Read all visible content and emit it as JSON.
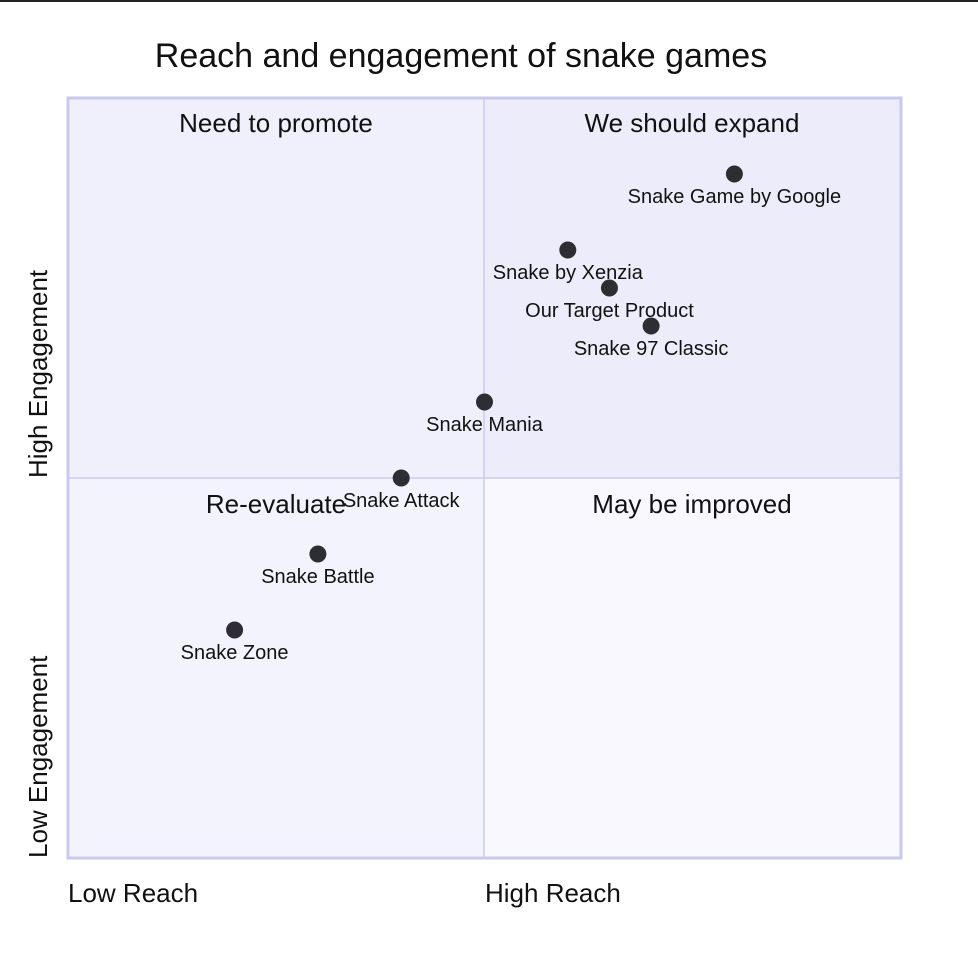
{
  "chart_data": {
    "type": "quadrant",
    "title": "Reach and engagement of snake games",
    "x_axis": {
      "low": "Low Reach",
      "high": "High Reach",
      "range": [
        0,
        1
      ]
    },
    "y_axis": {
      "low": "Low Engagement",
      "high": "High Engagement",
      "range": [
        0,
        1
      ]
    },
    "quadrants": {
      "top_left": "Need to promote",
      "top_right": "We should expand",
      "bottom_left": "Re-evaluate",
      "bottom_right": "May be improved"
    },
    "colors": {
      "top_right_fill": "#ececfb",
      "top_left_fill": "#f0f0fc",
      "bottom_left_fill": "#f3f3fd",
      "bottom_right_fill": "#f8f8fe",
      "border": "#c9c9f0",
      "divider": "#c9c9ef",
      "point": "#2d2d33"
    },
    "points": [
      {
        "name": "Snake Game by Google",
        "x": 0.8,
        "y": 0.9
      },
      {
        "name": "Snake by Xenzia",
        "x": 0.6,
        "y": 0.8
      },
      {
        "name": "Our Target Product",
        "x": 0.65,
        "y": 0.75
      },
      {
        "name": "Snake 97 Classic",
        "x": 0.7,
        "y": 0.7
      },
      {
        "name": "Snake Mania",
        "x": 0.5,
        "y": 0.6
      },
      {
        "name": "Snake Attack",
        "x": 0.4,
        "y": 0.5
      },
      {
        "name": "Snake Battle",
        "x": 0.3,
        "y": 0.4
      },
      {
        "name": "Snake Zone",
        "x": 0.2,
        "y": 0.3
      }
    ]
  }
}
